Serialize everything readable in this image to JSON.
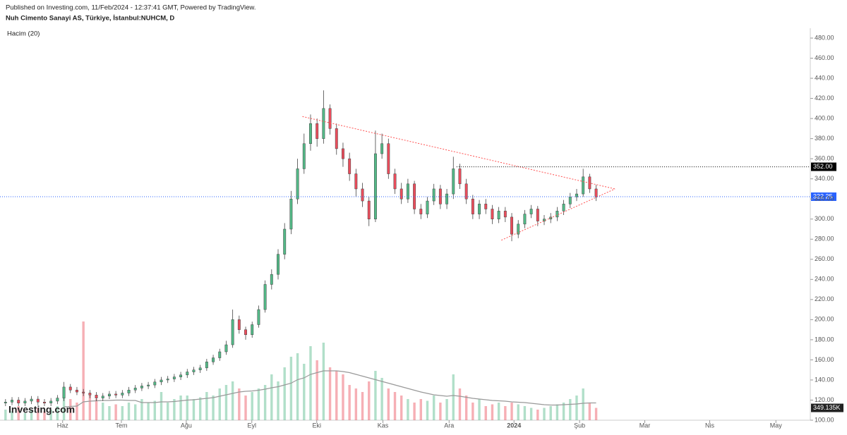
{
  "header": {
    "published": "Published on Investing.com, 11/Feb/2024 - 12:37:41 GMT, Powered by TradingView.",
    "symbol": "Nuh Cimento Sanayi AS, Türkiye, İstanbul:NUHCM, D",
    "indicator": "Hacim (20)",
    "logo": "Investing.com"
  },
  "chart_data": {
    "type": "candlestick",
    "x": [
      0,
      2,
      4,
      6,
      8,
      10,
      12,
      14,
      16,
      18,
      20,
      22,
      24,
      26,
      28,
      30,
      32,
      34,
      36,
      38,
      40,
      42,
      44,
      46,
      48,
      50,
      52,
      54,
      56,
      58,
      60,
      62,
      64,
      66,
      68,
      70,
      72,
      74,
      76,
      78,
      80,
      82,
      84,
      86,
      88,
      90,
      92,
      94,
      96,
      98,
      100,
      102,
      104,
      106,
      108,
      110,
      112,
      114,
      116,
      118,
      120,
      122,
      124,
      126,
      128,
      130,
      132,
      134,
      136,
      138,
      140,
      142,
      144,
      146,
      148,
      150,
      152,
      154,
      156,
      158,
      160,
      162,
      164,
      166,
      168,
      170,
      172,
      174,
      176,
      178,
      180,
      182
    ],
    "open": [
      117,
      118,
      120,
      117,
      119,
      121,
      118,
      117,
      119,
      122,
      133,
      130,
      128,
      127,
      125,
      122,
      124,
      126,
      125,
      127,
      130,
      132,
      134,
      135,
      138,
      140,
      141,
      143,
      145,
      148,
      150,
      152,
      158,
      162,
      168,
      175,
      200,
      190,
      185,
      195,
      210,
      235,
      245,
      265,
      290,
      320,
      350,
      375,
      395,
      380,
      410,
      390,
      370,
      360,
      345,
      330,
      318,
      300,
      365,
      375,
      345,
      330,
      320,
      335,
      310,
      305,
      318,
      330,
      315,
      325,
      350,
      335,
      320,
      305,
      315,
      310,
      300,
      308,
      302,
      285,
      295,
      305,
      310,
      298,
      300,
      302,
      308,
      315,
      322,
      325,
      342,
      330
    ],
    "high": [
      121,
      123,
      123,
      122,
      124,
      124,
      121,
      122,
      125,
      138,
      136,
      133,
      131,
      130,
      128,
      127,
      129,
      129,
      130,
      133,
      135,
      137,
      138,
      141,
      143,
      144,
      146,
      148,
      151,
      153,
      155,
      161,
      165,
      171,
      179,
      210,
      204,
      193,
      198,
      214,
      239,
      250,
      270,
      296,
      328,
      360,
      385,
      404,
      400,
      428,
      414,
      395,
      376,
      366,
      350,
      336,
      322,
      388,
      385,
      380,
      350,
      336,
      340,
      338,
      315,
      322,
      335,
      334,
      330,
      362,
      355,
      340,
      324,
      319,
      320,
      314,
      312,
      312,
      306,
      299,
      309,
      314,
      313,
      304,
      306,
      312,
      319,
      326,
      330,
      350,
      345,
      334
    ],
    "low": [
      114,
      115,
      114,
      114,
      116,
      115,
      114,
      114,
      116,
      119,
      127,
      125,
      124,
      122,
      119,
      119,
      121,
      122,
      122,
      124,
      127,
      129,
      131,
      132,
      135,
      137,
      138,
      140,
      142,
      145,
      147,
      149,
      155,
      159,
      165,
      172,
      186,
      180,
      182,
      192,
      207,
      230,
      240,
      260,
      285,
      315,
      345,
      368,
      372,
      375,
      384,
      364,
      352,
      338,
      322,
      312,
      293,
      297,
      360,
      340,
      325,
      315,
      316,
      305,
      300,
      301,
      314,
      310,
      310,
      320,
      330,
      315,
      300,
      300,
      305,
      295,
      296,
      297,
      278,
      281,
      291,
      301,
      293,
      294,
      296,
      298,
      304,
      311,
      318,
      322,
      326,
      318
    ],
    "close": [
      118,
      120,
      117,
      119,
      121,
      118,
      117,
      119,
      122,
      133,
      130,
      128,
      127,
      125,
      122,
      124,
      126,
      125,
      127,
      130,
      132,
      134,
      135,
      138,
      140,
      141,
      143,
      145,
      148,
      150,
      152,
      158,
      162,
      168,
      175,
      200,
      190,
      185,
      195,
      210,
      235,
      245,
      265,
      290,
      320,
      350,
      375,
      395,
      380,
      410,
      390,
      370,
      360,
      345,
      330,
      318,
      300,
      365,
      375,
      345,
      330,
      320,
      335,
      310,
      305,
      318,
      330,
      315,
      325,
      350,
      335,
      320,
      305,
      315,
      310,
      300,
      308,
      302,
      285,
      295,
      305,
      310,
      298,
      300,
      302,
      308,
      315,
      322,
      325,
      342,
      330,
      322
    ],
    "up_color": "#53b987",
    "down_color": "#eb4d5c",
    "volume": [
      300,
      250,
      400,
      200,
      300,
      350,
      250,
      300,
      400,
      900,
      600,
      500,
      2800,
      700,
      600,
      500,
      400,
      450,
      400,
      500,
      450,
      600,
      500,
      550,
      800,
      500,
      600,
      700,
      700,
      600,
      650,
      800,
      700,
      900,
      1000,
      1100,
      900,
      700,
      800,
      900,
      1000,
      1300,
      1100,
      1500,
      1800,
      1900,
      1600,
      2100,
      1700,
      2200,
      1500,
      1400,
      1300,
      1000,
      900,
      800,
      1100,
      1400,
      1200,
      900,
      800,
      700,
      600,
      500,
      600,
      550,
      700,
      500,
      600,
      1300,
      900,
      700,
      500,
      600,
      400,
      450,
      500,
      400,
      500,
      450,
      400,
      350,
      300,
      350,
      400,
      450,
      500,
      600,
      700,
      900,
      500,
      349.135
    ],
    "volume_ma": [
      null,
      null,
      null,
      null,
      null,
      null,
      null,
      null,
      null,
      380,
      390,
      400,
      520,
      540,
      550,
      560,
      560,
      570,
      570,
      560,
      560,
      500,
      500,
      500,
      520,
      520,
      530,
      550,
      570,
      580,
      600,
      620,
      640,
      680,
      720,
      760,
      800,
      820,
      830,
      850,
      880,
      920,
      950,
      1000,
      1050,
      1150,
      1200,
      1300,
      1350,
      1400,
      1400,
      1400,
      1380,
      1350,
      1300,
      1250,
      1200,
      1150,
      1100,
      1050,
      1000,
      950,
      900,
      850,
      800,
      760,
      720,
      700,
      680,
      700,
      680,
      650,
      620,
      600,
      580,
      560,
      550,
      540,
      520,
      510,
      500,
      480,
      460,
      440,
      430,
      430,
      440,
      450,
      460,
      480,
      490,
      490
    ],
    "volume_ma_color": "#999999",
    "last_volume": {
      "value": 349.135,
      "label": "349.135K"
    },
    "xlim": [
      -1.7,
      248
    ],
    "xticks": [
      {
        "value": 17.6,
        "label": "Haz"
      },
      {
        "value": 35.7,
        "label": "Tem"
      },
      {
        "value": 55.7,
        "label": "Ağu"
      },
      {
        "value": 75.9,
        "label": "Eyl"
      },
      {
        "value": 95.9,
        "label": "Eki"
      },
      {
        "value": 116.3,
        "label": "Kas"
      },
      {
        "value": 136.7,
        "label": "Ara"
      },
      {
        "value": 156.7,
        "label": "2024"
      },
      {
        "value": 176.9,
        "label": "Şub"
      },
      {
        "value": 197,
        "label": "Mar"
      },
      {
        "value": 217,
        "label": "Nis"
      },
      {
        "value": 237.4,
        "label": "May"
      }
    ],
    "ylim": [
      100,
      480
    ],
    "yticks": [
      {
        "value": 100,
        "label": "100.00"
      },
      {
        "value": 120,
        "label": "120.00"
      },
      {
        "value": 140,
        "label": "140.00"
      },
      {
        "value": 160,
        "label": "160.00"
      },
      {
        "value": 180,
        "label": "180.00"
      },
      {
        "value": 200,
        "label": "200.00"
      },
      {
        "value": 220,
        "label": "220.00"
      },
      {
        "value": 240,
        "label": "240.00"
      },
      {
        "value": 260,
        "label": "260.00"
      },
      {
        "value": 280,
        "label": "280.00"
      },
      {
        "value": 300,
        "label": "300.00"
      },
      {
        "value": 320,
        "label": "320.00"
      },
      {
        "value": 340,
        "label": "340.00"
      },
      {
        "value": 360,
        "label": "360.00"
      },
      {
        "value": 380,
        "label": "380.00"
      },
      {
        "value": 400,
        "label": "400.00"
      },
      {
        "value": 420,
        "label": "420.00"
      },
      {
        "value": 440,
        "label": "440.00"
      },
      {
        "value": 460,
        "label": "460.00"
      },
      {
        "value": 480,
        "label": "480.00"
      }
    ],
    "y2lim": [
      0,
      3000
    ],
    "hlines": [
      {
        "value": 352,
        "label": "352.00",
        "color": "#000000",
        "x_start": 139
      },
      {
        "value": 322.25,
        "label": "322.25",
        "color": "#2962ff",
        "x_start": -1.7
      }
    ],
    "trendlines": [
      {
        "x": [
          91.5,
          187.8
        ],
        "y": [
          402,
          330
        ],
        "color": "#ff5252"
      },
      {
        "x": [
          152.8,
          187.8
        ],
        "y": [
          279,
          330
        ],
        "color": "#ff5252"
      }
    ]
  }
}
